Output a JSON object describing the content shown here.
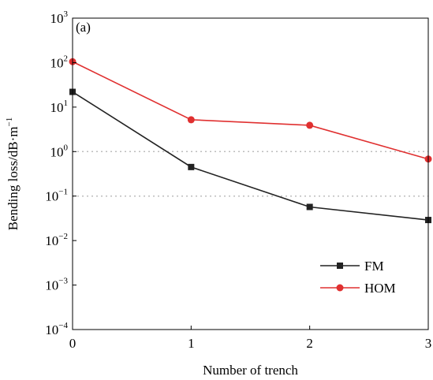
{
  "chart_data": {
    "type": "line",
    "panel_label": "(a)",
    "xlabel": "Number of trench",
    "ylabel": "Bending loss/dB·m",
    "ylabel_exp": "−1",
    "x_ticks": [
      "0",
      "1",
      "2",
      "3"
    ],
    "y_scale": "log",
    "ylim": [
      0.0001,
      1000
    ],
    "y_ticks": [
      {
        "value": 1000,
        "base": "10",
        "exp": "3"
      },
      {
        "value": 100,
        "base": "10",
        "exp": "2"
      },
      {
        "value": 10,
        "base": "10",
        "exp": "1"
      },
      {
        "value": 1,
        "base": "10",
        "exp": "0"
      },
      {
        "value": 0.1,
        "base": "10",
        "exp": "−1"
      },
      {
        "value": 0.01,
        "base": "10",
        "exp": "−2"
      },
      {
        "value": 0.001,
        "base": "10",
        "exp": "−3"
      },
      {
        "value": 0.0001,
        "base": "10",
        "exp": "−4"
      }
    ],
    "reference_lines": [
      1,
      0.1
    ],
    "x": [
      0,
      1,
      2,
      3
    ],
    "series": [
      {
        "name": "FM",
        "color": "#222222",
        "marker": "square",
        "values": [
          22,
          0.45,
          0.057,
          0.029
        ]
      },
      {
        "name": "HOM",
        "color": "#e03030",
        "marker": "circle",
        "values": [
          105,
          5.2,
          3.9,
          0.68
        ]
      }
    ],
    "legend_position": "lower-right",
    "grid": false
  }
}
